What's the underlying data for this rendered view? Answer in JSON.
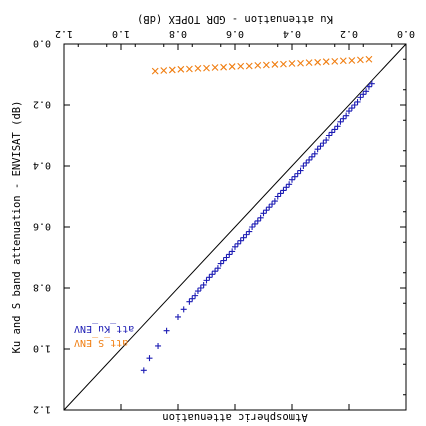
{
  "chart_data": {
    "type": "scatter",
    "title": "",
    "xlabel": "Ku attenuation - GDR TOPEX (dB)",
    "ylabel": "Ku and S band attenuation - ENVISAT (dB)",
    "bottom_label": "Atmospheric attenuation",
    "xlim": [
      0.0,
      1.2
    ],
    "ylim": [
      0.0,
      1.2
    ],
    "x_ticks": [
      "0.0",
      "0.2",
      "0.4",
      "0.6",
      "0.8",
      "1.0",
      "1.2"
    ],
    "y_ticks": [
      "0.0",
      "0.2",
      "0.4",
      "0.6",
      "0.8",
      "1.0",
      "1.2"
    ],
    "grid": false,
    "legend_position": "bottom-left",
    "reference_line": {
      "name": "1:1 line",
      "from": [
        0.0,
        0.0
      ],
      "to": [
        1.2,
        1.2
      ],
      "color": "#000000"
    },
    "series": [
      {
        "name": "att_Ku_ENV",
        "marker": "plus",
        "color": "#1c1cb4",
        "points": [
          [
            0.12,
            0.13
          ],
          [
            0.13,
            0.14
          ],
          [
            0.14,
            0.155
          ],
          [
            0.15,
            0.165
          ],
          [
            0.16,
            0.175
          ],
          [
            0.17,
            0.19
          ],
          [
            0.18,
            0.2
          ],
          [
            0.19,
            0.21
          ],
          [
            0.2,
            0.22
          ],
          [
            0.21,
            0.235
          ],
          [
            0.22,
            0.245
          ],
          [
            0.23,
            0.255
          ],
          [
            0.24,
            0.27
          ],
          [
            0.25,
            0.28
          ],
          [
            0.26,
            0.29
          ],
          [
            0.27,
            0.3
          ],
          [
            0.28,
            0.315
          ],
          [
            0.29,
            0.325
          ],
          [
            0.3,
            0.335
          ],
          [
            0.31,
            0.345
          ],
          [
            0.32,
            0.36
          ],
          [
            0.33,
            0.37
          ],
          [
            0.34,
            0.38
          ],
          [
            0.35,
            0.39
          ],
          [
            0.36,
            0.4
          ],
          [
            0.37,
            0.415
          ],
          [
            0.38,
            0.425
          ],
          [
            0.39,
            0.435
          ],
          [
            0.4,
            0.445
          ],
          [
            0.41,
            0.46
          ],
          [
            0.42,
            0.47
          ],
          [
            0.43,
            0.48
          ],
          [
            0.44,
            0.49
          ],
          [
            0.45,
            0.5
          ],
          [
            0.46,
            0.515
          ],
          [
            0.47,
            0.525
          ],
          [
            0.48,
            0.535
          ],
          [
            0.49,
            0.545
          ],
          [
            0.5,
            0.555
          ],
          [
            0.51,
            0.57
          ],
          [
            0.52,
            0.58
          ],
          [
            0.53,
            0.59
          ],
          [
            0.54,
            0.6
          ],
          [
            0.55,
            0.615
          ],
          [
            0.56,
            0.625
          ],
          [
            0.57,
            0.635
          ],
          [
            0.58,
            0.645
          ],
          [
            0.59,
            0.655
          ],
          [
            0.6,
            0.665
          ],
          [
            0.61,
            0.68
          ],
          [
            0.62,
            0.69
          ],
          [
            0.63,
            0.7
          ],
          [
            0.64,
            0.71
          ],
          [
            0.65,
            0.72
          ],
          [
            0.66,
            0.735
          ],
          [
            0.67,
            0.745
          ],
          [
            0.68,
            0.755
          ],
          [
            0.69,
            0.765
          ],
          [
            0.7,
            0.775
          ],
          [
            0.71,
            0.79
          ],
          [
            0.72,
            0.8
          ],
          [
            0.73,
            0.81
          ],
          [
            0.74,
            0.825
          ],
          [
            0.75,
            0.835
          ],
          [
            0.76,
            0.845
          ],
          [
            0.78,
            0.87
          ],
          [
            0.8,
            0.895
          ],
          [
            0.84,
            0.94
          ],
          [
            0.87,
            0.99
          ],
          [
            0.9,
            1.03
          ],
          [
            0.92,
            1.07
          ]
        ]
      },
      {
        "name": "att_S_ENV",
        "marker": "x",
        "color": "#f07d10",
        "points": [
          [
            0.13,
            0.05
          ],
          [
            0.16,
            0.052
          ],
          [
            0.19,
            0.054
          ],
          [
            0.22,
            0.055
          ],
          [
            0.25,
            0.057
          ],
          [
            0.28,
            0.058
          ],
          [
            0.31,
            0.06
          ],
          [
            0.34,
            0.061
          ],
          [
            0.37,
            0.063
          ],
          [
            0.4,
            0.064
          ],
          [
            0.43,
            0.066
          ],
          [
            0.46,
            0.067
          ],
          [
            0.49,
            0.069
          ],
          [
            0.52,
            0.07
          ],
          [
            0.55,
            0.072
          ],
          [
            0.58,
            0.073
          ],
          [
            0.61,
            0.074
          ],
          [
            0.64,
            0.076
          ],
          [
            0.67,
            0.077
          ],
          [
            0.7,
            0.079
          ],
          [
            0.73,
            0.08
          ],
          [
            0.76,
            0.082
          ],
          [
            0.79,
            0.083
          ],
          [
            0.82,
            0.085
          ],
          [
            0.85,
            0.087
          ],
          [
            0.88,
            0.089
          ]
        ]
      }
    ]
  },
  "colors": {
    "ku": "#1c1cb4",
    "s": "#f07d10",
    "axis": "#000000"
  }
}
